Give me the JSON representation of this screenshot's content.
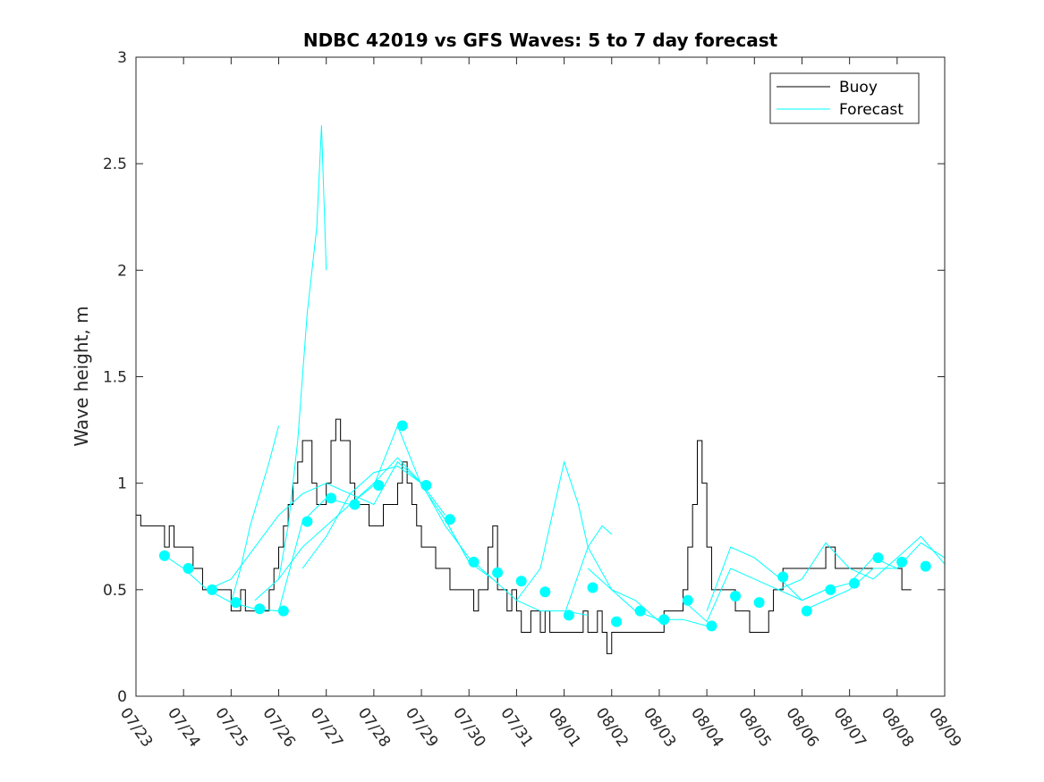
{
  "chart_data": {
    "type": "line",
    "title": "NDBC 42019 vs GFS Waves: 5 to 7 day forecast",
    "xlabel": "",
    "ylabel": "Wave height, m",
    "x_ticks": [
      "07/23",
      "07/24",
      "07/25",
      "07/26",
      "07/27",
      "07/28",
      "07/29",
      "07/30",
      "07/31",
      "08/01",
      "08/02",
      "08/03",
      "08/04",
      "08/05",
      "08/06",
      "08/07",
      "08/08",
      "08/09"
    ],
    "xlim_days": [
      0,
      17
    ],
    "ylim": [
      0,
      3
    ],
    "y_ticks": [
      "0",
      "0.5",
      "1",
      "1.5",
      "2",
      "2.5",
      "3"
    ],
    "y_tick_values": [
      0,
      0.5,
      1,
      1.5,
      2,
      2.5,
      3
    ],
    "grid": false,
    "legend_position": "top-right",
    "colors": {
      "buoy": "#000000",
      "forecast": "#00ffff"
    },
    "series": [
      {
        "name": "Buoy",
        "x": [
          0,
          0.1,
          0.3,
          0.5,
          0.6,
          0.7,
          0.8,
          1.0,
          1.2,
          1.4,
          1.6,
          1.8,
          1.9,
          2.0,
          2.1,
          2.2,
          2.3,
          2.5,
          2.7,
          2.8,
          2.9,
          3.0,
          3.1,
          3.2,
          3.3,
          3.4,
          3.5,
          3.7,
          3.8,
          3.9,
          4.0,
          4.1,
          4.2,
          4.3,
          4.5,
          4.6,
          4.7,
          4.8,
          4.9,
          5.0,
          5.1,
          5.2,
          5.3,
          5.4,
          5.5,
          5.6,
          5.7,
          5.8,
          5.9,
          6.0,
          6.1,
          6.2,
          6.3,
          6.4,
          6.5,
          6.6,
          6.7,
          6.8,
          6.9,
          7.0,
          7.1,
          7.2,
          7.3,
          7.4,
          7.5,
          7.6,
          7.7,
          7.8,
          7.9,
          8.0,
          8.1,
          8.2,
          8.3,
          8.4,
          8.5,
          8.6,
          8.7,
          8.8,
          8.9,
          9.0,
          9.1,
          9.2,
          9.3,
          9.4,
          9.5,
          9.6,
          9.7,
          9.8,
          9.9,
          10.0,
          10.1,
          10.2,
          10.3,
          10.4,
          10.5,
          10.6,
          10.7,
          10.8,
          10.9,
          11.0,
          11.1,
          11.2,
          11.3,
          11.4,
          11.5,
          11.6,
          11.7,
          11.8,
          11.9,
          12.0,
          12.1,
          12.2,
          12.3,
          12.4,
          12.5,
          12.6,
          12.7,
          12.8,
          12.9,
          12.95,
          13.0,
          13.1,
          13.2,
          13.3,
          13.4,
          13.5,
          13.6,
          13.7,
          13.8,
          13.9,
          14.0,
          14.1,
          14.2,
          14.3,
          14.4,
          14.5,
          14.6,
          14.7,
          14.8,
          14.9,
          15.0,
          15.1,
          15.2,
          15.3,
          15.4,
          15.5,
          15.6,
          15.7,
          15.8,
          15.9,
          16.0,
          16.1,
          16.2,
          16.3
        ],
        "values": [
          0.85,
          0.8,
          0.8,
          0.8,
          0.7,
          0.8,
          0.7,
          0.7,
          0.6,
          0.5,
          0.5,
          0.5,
          0.5,
          0.4,
          0.4,
          0.5,
          0.4,
          0.4,
          0.4,
          0.5,
          0.6,
          0.7,
          0.8,
          0.9,
          1.0,
          1.1,
          1.2,
          1.0,
          0.9,
          0.9,
          1.0,
          1.2,
          1.3,
          1.2,
          1.0,
          0.9,
          0.9,
          0.9,
          0.8,
          0.8,
          0.8,
          0.9,
          0.9,
          0.9,
          1.0,
          1.1,
          1.0,
          0.9,
          0.8,
          0.7,
          0.7,
          0.7,
          0.6,
          0.6,
          0.6,
          0.5,
          0.5,
          0.5,
          0.5,
          0.5,
          0.4,
          0.5,
          0.5,
          0.7,
          0.8,
          0.5,
          0.5,
          0.4,
          0.5,
          0.4,
          0.3,
          0.3,
          0.4,
          0.4,
          0.3,
          0.4,
          0.3,
          0.3,
          0.3,
          0.3,
          0.3,
          0.3,
          0.3,
          0.4,
          0.3,
          0.3,
          0.4,
          0.3,
          0.2,
          0.3,
          0.3,
          0.3,
          0.3,
          0.3,
          0.3,
          0.3,
          0.3,
          0.3,
          0.3,
          0.3,
          0.4,
          0.4,
          0.4,
          0.4,
          0.5,
          0.7,
          0.9,
          1.2,
          1.0,
          0.7,
          0.5,
          0.5,
          0.5,
          0.5,
          0.5,
          0.4,
          0.4,
          0.4,
          0.3,
          0.3,
          0.3,
          0.3,
          0.3,
          0.4,
          0.5,
          0.5,
          0.6,
          0.6,
          0.6,
          0.6,
          0.6,
          0.6,
          0.6,
          0.6,
          0.6,
          0.7,
          0.7,
          0.6,
          0.6,
          0.6,
          0.6,
          0.6,
          0.6,
          0.6,
          0.6,
          0.6,
          0.6,
          0.6,
          0.6,
          0.6,
          0.6,
          0.5,
          0.5,
          0.5
        ]
      },
      {
        "name": "Forecast",
        "traces": [
          {
            "x": [
              0.6,
              1.0,
              1.5,
              2.0,
              2.5,
              3.0,
              3.5,
              4.0,
              4.5,
              5.0,
              5.5,
              6.0,
              6.5,
              7.0
            ],
            "values": [
              0.66,
              0.6,
              0.5,
              0.44,
              0.41,
              0.4,
              0.82,
              0.93,
              0.9,
              0.99,
              1.27,
              0.99,
              0.83,
              0.63
            ]
          },
          {
            "x": [
              2.0,
              2.2,
              2.4,
              2.6,
              2.8,
              3.0
            ],
            "values": [
              0.44,
              0.6,
              0.8,
              0.95,
              1.1,
              1.27
            ]
          },
          {
            "x": [
              3.0,
              3.2,
              3.4,
              3.6,
              3.8,
              3.9,
              4.0
            ],
            "values": [
              0.55,
              0.8,
              1.2,
              1.8,
              2.2,
              2.68,
              2.0
            ]
          },
          {
            "x": [
              1.5,
              2.0,
              2.5,
              3.0,
              3.5,
              4.0,
              4.5,
              5.0,
              5.5,
              6.0
            ],
            "values": [
              0.5,
              0.55,
              0.7,
              0.85,
              0.95,
              1.0,
              0.95,
              0.9,
              1.1,
              1.0
            ]
          },
          {
            "x": [
              2.5,
              3.0,
              3.5,
              4.0,
              4.5,
              5.0,
              5.5,
              6.0,
              6.5
            ],
            "values": [
              0.45,
              0.55,
              0.7,
              0.8,
              0.9,
              1.0,
              1.12,
              1.0,
              0.85
            ]
          },
          {
            "x": [
              3.5,
              4.0,
              4.5,
              5.0,
              5.5,
              6.0,
              6.5,
              7.0,
              7.5
            ],
            "values": [
              0.6,
              0.75,
              0.95,
              1.05,
              1.08,
              1.0,
              0.8,
              0.65,
              0.55
            ]
          },
          {
            "x": [
              6.5,
              7.0,
              7.5,
              8.0,
              8.5,
              9.0,
              9.5
            ],
            "values": [
              0.83,
              0.63,
              0.55,
              0.45,
              0.4,
              0.4,
              0.38
            ]
          },
          {
            "x": [
              8.0,
              8.5,
              9.0,
              9.3,
              9.5,
              9.8,
              10.0
            ],
            "values": [
              0.45,
              0.6,
              1.1,
              0.9,
              0.7,
              0.8,
              0.76
            ]
          },
          {
            "x": [
              9.0,
              9.5,
              10.0,
              10.5,
              11.0
            ],
            "values": [
              0.38,
              0.7,
              0.5,
              0.45,
              0.35
            ]
          },
          {
            "x": [
              9.5,
              10.0,
              10.5,
              11.0,
              11.5,
              12.0
            ],
            "values": [
              0.6,
              0.5,
              0.4,
              0.36,
              0.36,
              0.33
            ]
          },
          {
            "x": [
              11.5,
              12.0,
              12.5,
              13.0,
              13.5,
              14.0,
              14.5
            ],
            "values": [
              0.45,
              0.35,
              0.6,
              0.55,
              0.5,
              0.45,
              0.5
            ]
          },
          {
            "x": [
              12.0,
              12.5,
              13.0,
              13.5,
              14.0,
              14.5,
              15.0,
              15.5,
              16.0
            ],
            "values": [
              0.4,
              0.7,
              0.65,
              0.56,
              0.45,
              0.5,
              0.53,
              0.65,
              0.6
            ]
          },
          {
            "x": [
              13.5,
              14.0,
              14.5,
              15.0,
              15.5,
              16.0,
              16.5,
              17.0
            ],
            "values": [
              0.5,
              0.55,
              0.72,
              0.6,
              0.55,
              0.65,
              0.75,
              0.62
            ]
          },
          {
            "x": [
              14.0,
              14.5,
              15.0,
              15.5,
              16.0,
              16.5,
              17.0
            ],
            "values": [
              0.4,
              0.45,
              0.5,
              0.6,
              0.6,
              0.72,
              0.65
            ]
          }
        ],
        "markers": {
          "x": [
            0.6,
            1.1,
            1.6,
            2.1,
            2.6,
            3.1,
            3.6,
            4.1,
            4.6,
            5.1,
            5.6,
            6.1,
            6.6,
            7.1,
            7.6,
            8.1,
            8.6,
            9.1,
            9.6,
            10.1,
            10.6,
            11.1,
            11.6,
            12.1,
            12.6,
            13.1,
            13.6,
            14.1,
            14.6,
            15.1,
            15.6,
            16.1,
            16.6
          ],
          "values": [
            0.66,
            0.6,
            0.5,
            0.44,
            0.41,
            0.4,
            0.82,
            0.93,
            0.9,
            0.99,
            1.27,
            0.99,
            0.83,
            0.63,
            0.58,
            0.54,
            0.49,
            0.38,
            0.51,
            0.35,
            0.4,
            0.36,
            0.45,
            0.33,
            0.47,
            0.44,
            0.56,
            0.4,
            0.5,
            0.53,
            0.65,
            0.63,
            0.61
          ]
        }
      }
    ]
  }
}
